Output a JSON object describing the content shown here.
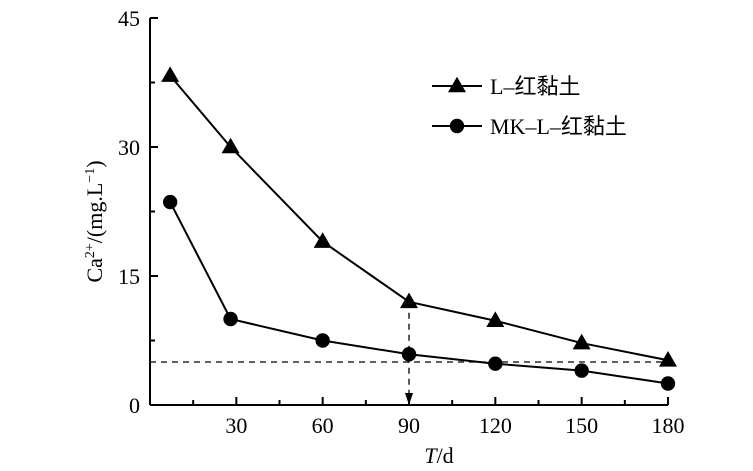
{
  "chart_data": {
    "type": "line",
    "title": "",
    "xlabel": {
      "italic": "T",
      "rest": "/d"
    },
    "ylabel": {
      "base": "Ca",
      "sup": "2+",
      "rest": "/(mg.L",
      "unit_sup": "−1",
      "close": ")"
    },
    "xlim": [
      0,
      180
    ],
    "ylim": [
      0,
      45
    ],
    "xticks": [
      30,
      60,
      90,
      120,
      150,
      180
    ],
    "yticks": [
      0,
      15,
      30,
      45
    ],
    "grid": false,
    "legend_position": "top-right",
    "series": [
      {
        "name": "L–红黏土",
        "marker": "triangle",
        "x": [
          7,
          28,
          60,
          90,
          120,
          150,
          180
        ],
        "y": [
          38.3,
          30.0,
          19.0,
          12.0,
          9.8,
          7.2,
          5.2
        ]
      },
      {
        "name": "MK–L–红黏土",
        "marker": "circle",
        "x": [
          7,
          28,
          60,
          90,
          120,
          150,
          180
        ],
        "y": [
          23.6,
          10.0,
          7.5,
          5.9,
          4.8,
          4.0,
          2.5
        ]
      }
    ],
    "reference_lines": [
      {
        "kind": "horizontal",
        "y": 5
      },
      {
        "kind": "vertical-arrow",
        "x": 90,
        "from_y": 12.0,
        "to_y": 0
      }
    ],
    "colors": {
      "line": "#000000",
      "marker": "#000000"
    }
  }
}
